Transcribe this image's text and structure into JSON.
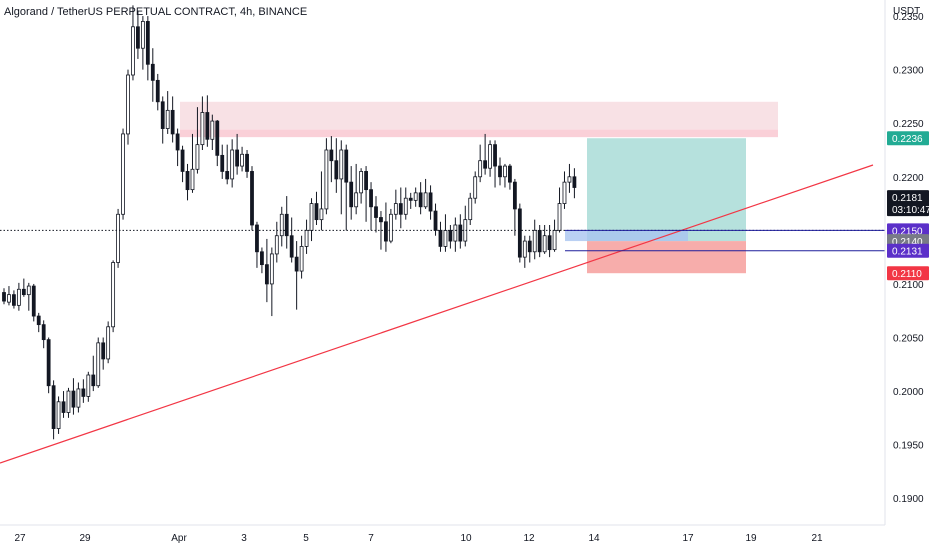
{
  "header": {
    "title": "Algorand / TetherUS PERPETUAL CONTRACT, 4h, BINANCE"
  },
  "colors": {
    "up": "#131722",
    "down": "#131722",
    "trendline": "#f23645",
    "profit_zone": "#b2dfdb",
    "loss_zone": "#f7a9a7",
    "resistance_zone": "#f3c8cf",
    "entry_line": "#1e1e9c",
    "grid_dotted": "#131722",
    "tag_green": "#22ab94",
    "tag_red": "#f23645",
    "tag_purple": "#5b2fc9",
    "tag_dark": "#131722",
    "tag_gray": "#787b86"
  },
  "chart_data": {
    "type": "candlestick",
    "symbol": "Algorand / TetherUS PERPETUAL CONTRACT",
    "interval": "4h",
    "exchange": "BINANCE",
    "y_unit_label": "USDT",
    "ylim": [
      0.1875,
      0.2365
    ],
    "y_ticks": [
      "0.2350",
      "0.2300",
      "0.2250",
      "0.2200",
      "0.2150",
      "0.2100",
      "0.2050",
      "0.2000",
      "0.1950",
      "0.1900"
    ],
    "x_ticks": [
      "27",
      "29",
      "Apr",
      "3",
      "5",
      "7",
      "10",
      "12",
      "14",
      "17",
      "19",
      "21"
    ],
    "price_tags": [
      {
        "label": "0.2236",
        "value": 0.2236,
        "color": "tag_green"
      },
      {
        "label": "0.2181",
        "value": 0.2181,
        "color": "tag_dark",
        "sub": "03:10:47"
      },
      {
        "label": "0.2150",
        "value": 0.215,
        "color": "tag_purple"
      },
      {
        "label": "0.2140",
        "value": 0.214,
        "color": "tag_gray"
      },
      {
        "label": "0.2131",
        "value": 0.2131,
        "color": "tag_purple"
      },
      {
        "label": "0.2110",
        "value": 0.211,
        "color": "tag_red"
      }
    ],
    "last_price": 0.2181,
    "position": {
      "entry": 0.214,
      "target": 0.2236,
      "stop": 0.211,
      "from_x": 587,
      "to_x": 746
    },
    "candles": [
      [
        0.2092,
        0.2084,
        0.2096,
        0.2081
      ],
      [
        0.2083,
        0.209,
        0.2098,
        0.208
      ],
      [
        0.209,
        0.208,
        0.2094,
        0.2077
      ],
      [
        0.208,
        0.2095,
        0.2101,
        0.2075
      ],
      [
        0.2095,
        0.209,
        0.2105,
        0.2088
      ],
      [
        0.209,
        0.2098,
        0.2101,
        0.2075
      ],
      [
        0.2098,
        0.207,
        0.21,
        0.2065
      ],
      [
        0.207,
        0.2062,
        0.2073,
        0.2055
      ],
      [
        0.2062,
        0.2048,
        0.2066,
        0.204
      ],
      [
        0.2048,
        0.2005,
        0.205,
        0.1998
      ],
      [
        0.2005,
        0.1965,
        0.201,
        0.1955
      ],
      [
        0.1965,
        0.199,
        0.1995,
        0.196
      ],
      [
        0.199,
        0.198,
        0.2,
        0.1975
      ],
      [
        0.198,
        0.2,
        0.2003,
        0.1975
      ],
      [
        0.2,
        0.1985,
        0.2012,
        0.1978
      ],
      [
        0.1985,
        0.2002,
        0.2008,
        0.198
      ],
      [
        0.2002,
        0.1995,
        0.2011,
        0.1989
      ],
      [
        0.1995,
        0.2015,
        0.2018,
        0.199
      ],
      [
        0.2015,
        0.2005,
        0.2033,
        0.2
      ],
      [
        0.2005,
        0.2045,
        0.205,
        0.2003
      ],
      [
        0.2045,
        0.203,
        0.205,
        0.202
      ],
      [
        0.203,
        0.206,
        0.2065,
        0.2026
      ],
      [
        0.206,
        0.212,
        0.2122,
        0.2055
      ],
      [
        0.212,
        0.2165,
        0.217,
        0.2115
      ],
      [
        0.2165,
        0.224,
        0.2245,
        0.216
      ],
      [
        0.224,
        0.2295,
        0.23,
        0.223
      ],
      [
        0.2295,
        0.234,
        0.236,
        0.229
      ],
      [
        0.234,
        0.232,
        0.2355,
        0.231
      ],
      [
        0.232,
        0.2345,
        0.235,
        0.23
      ],
      [
        0.2345,
        0.2305,
        0.235,
        0.229
      ],
      [
        0.2305,
        0.229,
        0.232,
        0.227
      ],
      [
        0.229,
        0.227,
        0.2296,
        0.2262
      ],
      [
        0.227,
        0.2245,
        0.2275,
        0.2231
      ],
      [
        0.2245,
        0.2262,
        0.228,
        0.224
      ],
      [
        0.2262,
        0.224,
        0.2275,
        0.2232
      ],
      [
        0.224,
        0.2225,
        0.2245,
        0.221
      ],
      [
        0.2225,
        0.2205,
        0.2229,
        0.2195
      ],
      [
        0.2205,
        0.2188,
        0.2212,
        0.2178
      ],
      [
        0.2188,
        0.2207,
        0.224,
        0.2185
      ],
      [
        0.2207,
        0.223,
        0.2265,
        0.2203
      ],
      [
        0.223,
        0.226,
        0.2275,
        0.2225
      ],
      [
        0.226,
        0.2235,
        0.2276,
        0.2228
      ],
      [
        0.2235,
        0.2252,
        0.2258,
        0.2225
      ],
      [
        0.2252,
        0.222,
        0.2253,
        0.221
      ],
      [
        0.222,
        0.2205,
        0.223,
        0.2198
      ],
      [
        0.2205,
        0.2198,
        0.223,
        0.2193
      ],
      [
        0.2198,
        0.2225,
        0.2235,
        0.219
      ],
      [
        0.2225,
        0.221,
        0.224,
        0.2202
      ],
      [
        0.221,
        0.2221,
        0.2228,
        0.2205
      ],
      [
        0.2221,
        0.2205,
        0.2225,
        0.2199
      ],
      [
        0.2205,
        0.2155,
        0.221,
        0.215
      ],
      [
        0.2155,
        0.213,
        0.2158,
        0.2115
      ],
      [
        0.213,
        0.2118,
        0.2134,
        0.211
      ],
      [
        0.2118,
        0.21,
        0.2142,
        0.2083
      ],
      [
        0.21,
        0.2128,
        0.2134,
        0.207
      ],
      [
        0.2128,
        0.2145,
        0.2158,
        0.212
      ],
      [
        0.2145,
        0.2165,
        0.2172,
        0.2135
      ],
      [
        0.2165,
        0.2145,
        0.2182,
        0.2133
      ],
      [
        0.2145,
        0.2125,
        0.2162,
        0.212
      ],
      [
        0.2125,
        0.2112,
        0.214,
        0.2076
      ],
      [
        0.2112,
        0.2135,
        0.2145,
        0.2105
      ],
      [
        0.2135,
        0.215,
        0.216,
        0.2128
      ],
      [
        0.215,
        0.2175,
        0.218,
        0.214
      ],
      [
        0.2175,
        0.216,
        0.2186,
        0.2155
      ],
      [
        0.216,
        0.217,
        0.2205,
        0.215
      ],
      [
        0.217,
        0.2225,
        0.2236,
        0.2165
      ],
      [
        0.2225,
        0.2215,
        0.2238,
        0.2195
      ],
      [
        0.2215,
        0.2198,
        0.2236,
        0.2185
      ],
      [
        0.2198,
        0.2225,
        0.2234,
        0.2165
      ],
      [
        0.2225,
        0.2195,
        0.223,
        0.215
      ],
      [
        0.2195,
        0.2172,
        0.221,
        0.216
      ],
      [
        0.2172,
        0.2185,
        0.2212,
        0.2165
      ],
      [
        0.2185,
        0.2205,
        0.2208,
        0.2175
      ],
      [
        0.2205,
        0.2188,
        0.221,
        0.2158
      ],
      [
        0.2188,
        0.2172,
        0.2195,
        0.215
      ],
      [
        0.2172,
        0.2162,
        0.2182,
        0.2148
      ],
      [
        0.2162,
        0.2158,
        0.2168,
        0.2132
      ],
      [
        0.2158,
        0.214,
        0.2176,
        0.213
      ],
      [
        0.214,
        0.2165,
        0.217,
        0.2138
      ],
      [
        0.2165,
        0.2175,
        0.2188,
        0.216
      ],
      [
        0.2175,
        0.2165,
        0.219,
        0.2152
      ],
      [
        0.2165,
        0.218,
        0.219,
        0.216
      ],
      [
        0.218,
        0.2178,
        0.2185,
        0.217
      ],
      [
        0.2178,
        0.2185,
        0.219,
        0.2172
      ],
      [
        0.2185,
        0.2172,
        0.2195,
        0.2165
      ],
      [
        0.2172,
        0.2185,
        0.2198,
        0.217
      ],
      [
        0.2185,
        0.2168,
        0.2192,
        0.216
      ],
      [
        0.2168,
        0.215,
        0.2175,
        0.2145
      ],
      [
        0.215,
        0.2135,
        0.2158,
        0.213
      ],
      [
        0.2135,
        0.215,
        0.2165,
        0.213
      ],
      [
        0.215,
        0.214,
        0.2155,
        0.2133
      ],
      [
        0.214,
        0.2155,
        0.2162,
        0.213
      ],
      [
        0.2155,
        0.214,
        0.2165,
        0.2133
      ],
      [
        0.214,
        0.216,
        0.2173,
        0.2135
      ],
      [
        0.216,
        0.218,
        0.2185,
        0.2155
      ],
      [
        0.218,
        0.22,
        0.2205,
        0.2175
      ],
      [
        0.22,
        0.2215,
        0.223,
        0.2195
      ],
      [
        0.2215,
        0.2208,
        0.224,
        0.2202
      ],
      [
        0.2208,
        0.223,
        0.2234,
        0.22
      ],
      [
        0.223,
        0.221,
        0.2234,
        0.219
      ],
      [
        0.221,
        0.22,
        0.2218,
        0.2192
      ],
      [
        0.22,
        0.221,
        0.2212,
        0.219
      ],
      [
        0.221,
        0.2195,
        0.2212,
        0.2188
      ],
      [
        0.2195,
        0.217,
        0.2198,
        0.2145
      ],
      [
        0.217,
        0.2125,
        0.2175,
        0.212
      ],
      [
        0.2125,
        0.214,
        0.2145,
        0.2115
      ],
      [
        0.214,
        0.213,
        0.2145,
        0.212
      ],
      [
        0.213,
        0.215,
        0.216,
        0.2123
      ],
      [
        0.215,
        0.213,
        0.2155,
        0.2125
      ],
      [
        0.213,
        0.2145,
        0.2155,
        0.2128
      ],
      [
        0.2145,
        0.2132,
        0.2155,
        0.2125
      ],
      [
        0.2132,
        0.215,
        0.216,
        0.213
      ],
      [
        0.215,
        0.2175,
        0.219,
        0.2148
      ],
      [
        0.2175,
        0.2195,
        0.2205,
        0.217
      ],
      [
        0.2195,
        0.22,
        0.2212,
        0.2185
      ],
      [
        0.22,
        0.219,
        0.2208,
        0.218
      ]
    ]
  }
}
